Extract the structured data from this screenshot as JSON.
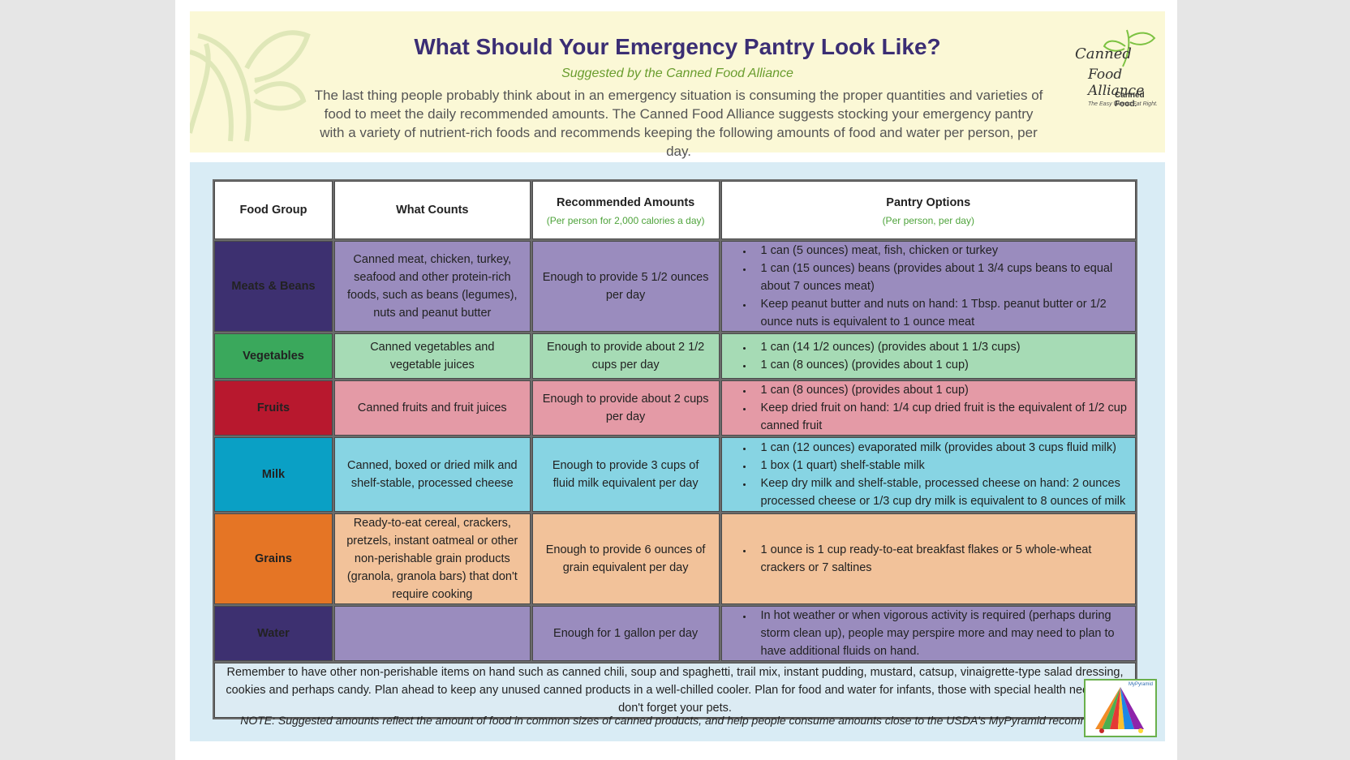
{
  "header": {
    "title": "What Should Your Emergency Pantry Look Like?",
    "subtitle": "Suggested by the Canned Food Alliance",
    "intro": "The last thing people probably think about in an emergency situation is consuming the proper quantities and varieties of food to meet the daily recommended amounts.  The Canned Food Alliance suggests stocking your emergency pantry with a variety of nutrient-rich foods and recommends keeping the following amounts of food and water per person, per day.",
    "logo": {
      "line1": "Canned",
      "line2": "Food Alliance",
      "line3": "Canned Food.",
      "tagline": "The Easy Way to Eat Right."
    }
  },
  "table": {
    "headers": {
      "food_group": "Food Group",
      "what_counts": "What Counts",
      "recommended": "Recommended Amounts",
      "recommended_sub": "(Per person for 2,000 calories a day)",
      "pantry": "Pantry Options",
      "pantry_sub": "(Per person, per day)"
    },
    "rows": [
      {
        "group": "Meats & Beans",
        "counts": "Canned meat, chicken, turkey, seafood and other protein-rich foods, such as beans (legumes), nuts and peanut butter",
        "amount": "Enough to provide 5 1/2 ounces per day",
        "options": [
          "1 can (5 ounces) meat, fish, chicken or turkey",
          "1 can (15 ounces) beans (provides about 1 3/4 cups beans to equal about 7 ounces meat)",
          "Keep peanut butter and nuts on hand:  1 Tbsp. peanut butter or 1/2 ounce nuts is equivalent to 1 ounce meat"
        ]
      },
      {
        "group": "Vegetables",
        "counts": "Canned vegetables and vegetable juices",
        "amount": "Enough to provide about 2 1/2 cups per day",
        "options": [
          "1 can (14 1/2 ounces) (provides about 1 1/3 cups)",
          "1 can (8 ounces) (provides about 1 cup)"
        ]
      },
      {
        "group": "Fruits",
        "counts": "Canned fruits and fruit juices",
        "amount": "Enough to provide about 2 cups per day",
        "options": [
          "1 can (8 ounces) (provides about 1 cup)",
          "Keep dried fruit on hand:  1/4 cup dried fruit is the equivalent of 1/2 cup canned fruit"
        ]
      },
      {
        "group": "Milk",
        "counts": "Canned, boxed or dried milk and shelf-stable, processed cheese",
        "amount": "Enough to provide 3 cups of fluid milk equivalent per day",
        "options": [
          "1 can (12 ounces) evaporated milk (provides about 3 cups fluid milk)",
          "1 box (1 quart) shelf-stable milk",
          "Keep dry milk and shelf-stable, processed cheese on hand:  2 ounces processed cheese or 1/3 cup dry milk is equivalent to 8 ounces of milk"
        ]
      },
      {
        "group": "Grains",
        "counts": "Ready-to-eat cereal, crackers, pretzels, instant oatmeal or other non-perishable grain products (granola, granola bars) that don't require cooking",
        "amount": "Enough to provide 6 ounces of grain equivalent per day",
        "options": [
          "1 ounce is 1 cup ready-to-eat breakfast flakes or 5 whole-wheat crackers or 7 saltines"
        ]
      },
      {
        "group": "Water",
        "counts": "",
        "amount": "Enough for 1 gallon per day",
        "options": [
          "In hot weather or when vigorous activity is required (perhaps during storm clean up), people may perspire more and may need to plan to have additional fluids on hand."
        ]
      }
    ],
    "footer": "Remember to have other non-perishable items on hand such as canned chili, soup and spaghetti, trail mix, instant pudding, mustard, catsup, vinaigrette-type salad dressing, cookies and perhaps candy.  Plan ahead to keep any unused canned products in a well-chilled cooler.  Plan for food and water for infants, those with special health needs and don't forget your pets."
  },
  "note": "NOTE:  Suggested amounts reflect the amount of food in common sizes of canned products, and help people consume amounts close to the USDA's MyPyramid recommendations.",
  "pyramid_label": "MyPyramid"
}
